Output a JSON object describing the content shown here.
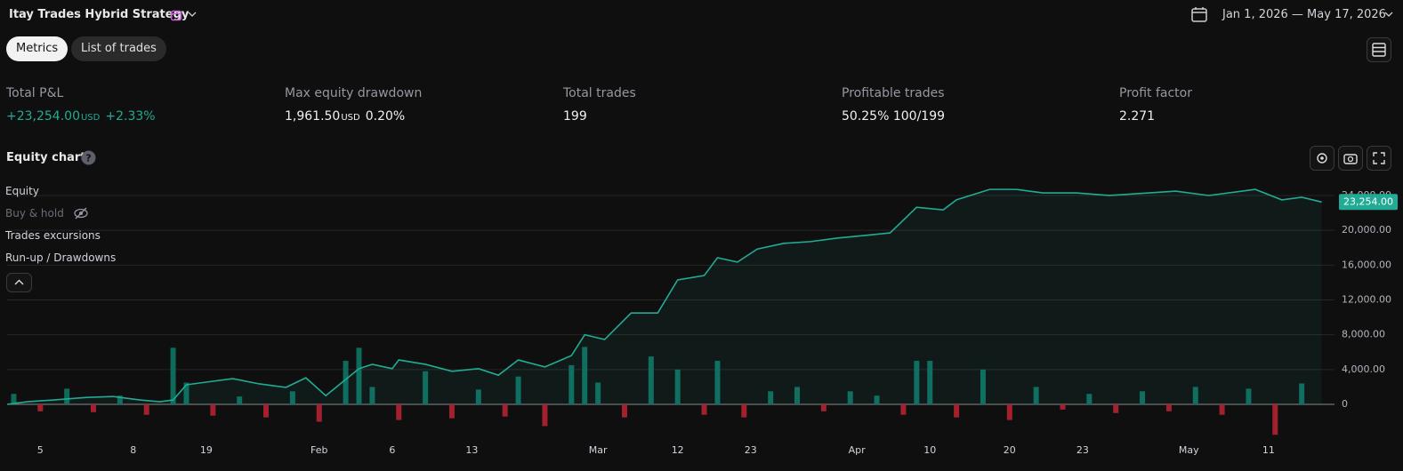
{
  "header": {
    "title": "Itay Trades Hybrid Strategy",
    "date_range": "Jan 1, 2026 — May 17, 2026"
  },
  "tabs": [
    "Metrics",
    "List of trades"
  ],
  "metrics": [
    {
      "label": "Total P&L",
      "value": "+23,254.00",
      "unit": "USD",
      "extra": "+2.33%"
    },
    {
      "label": "Max equity drawdown",
      "value": "1,961.50",
      "unit": "USD",
      "extra": "0.20%"
    },
    {
      "label": "Total trades",
      "value": "199"
    },
    {
      "label": "Profitable trades",
      "value": "50.25%",
      "extra": "100/199"
    },
    {
      "label": "Profit factor",
      "value": "2.271"
    }
  ],
  "section_title": "Equity chart",
  "legend_extra": [
    "Buy & hold",
    "Run-up / Drawdowns"
  ],
  "chart_data": {
    "type": "line",
    "series": [
      {
        "name": "Equity",
        "color": "#22ab94",
        "x": [
          0,
          3,
          7,
          12,
          16,
          20,
          23,
          25,
          27,
          30,
          34,
          38,
          42,
          45,
          48,
          53,
          55,
          58,
          59,
          63,
          67,
          71,
          74,
          77,
          81,
          85,
          87,
          90,
          94,
          98,
          101,
          105,
          107,
          110,
          113,
          117,
          121,
          125,
          129,
          133,
          137,
          141,
          143,
          148,
          152,
          156,
          161,
          166,
          172,
          176,
          181,
          188,
          192,
          195,
          198
        ],
        "values": [
          0,
          300,
          500,
          800,
          900,
          500,
          300,
          500,
          2250,
          2550,
          2950,
          2350,
          1950,
          3050,
          1000,
          4100,
          4600,
          4100,
          5100,
          4600,
          3800,
          4100,
          3350,
          5100,
          4300,
          5600,
          8000,
          7450,
          10500,
          10500,
          14300,
          14800,
          16850,
          16350,
          17850,
          18500,
          18700,
          19100,
          19400,
          19700,
          22650,
          22350,
          23500,
          24700,
          24700,
          24300,
          24300,
          24000,
          24300,
          24500,
          24000,
          24700,
          23500,
          23800,
          23254
        ]
      },
      {
        "name": "Trades excursions",
        "type": "bar",
        "color": "#0e6b5c",
        "negative_color": "#a3212e",
        "x": [
          1,
          5,
          9,
          13,
          17,
          21,
          25,
          27,
          31,
          35,
          39,
          43,
          47,
          51,
          53,
          55,
          59,
          63,
          67,
          71,
          75,
          77,
          81,
          85,
          87,
          89,
          93,
          97,
          101,
          105,
          107,
          111,
          115,
          119,
          123,
          127,
          131,
          135,
          137,
          139,
          143,
          147,
          151,
          155,
          159,
          163,
          167,
          171,
          175,
          179,
          183,
          187,
          191,
          195
        ],
        "values": [
          1200,
          -800,
          1800,
          -900,
          1000,
          -1200,
          6500,
          2500,
          -1300,
          900,
          -1500,
          1500,
          -2000,
          5000,
          6500,
          2000,
          -1800,
          3800,
          -1600,
          1700,
          -1400,
          3200,
          -2500,
          4500,
          6600,
          2500,
          -1500,
          5500,
          4000,
          -1200,
          5000,
          -1500,
          1500,
          2000,
          -800,
          1500,
          1000,
          -1200,
          5000,
          5000,
          -1500,
          4000,
          -1800,
          2000,
          -600,
          1200,
          -1000,
          1500,
          -800,
          2000,
          -1200,
          1800,
          -3500,
          2400
        ]
      }
    ],
    "xlim": [
      0,
      199
    ],
    "xticks": [
      {
        "value": 5,
        "label": "5"
      },
      {
        "value": 19,
        "label": "8"
      },
      {
        "value": 30,
        "label": "19"
      },
      {
        "value": 47,
        "label": "Feb"
      },
      {
        "value": 58,
        "label": "6"
      },
      {
        "value": 70,
        "label": "13"
      },
      {
        "value": 89,
        "label": "Mar"
      },
      {
        "value": 101,
        "label": "12"
      },
      {
        "value": 112,
        "label": "23"
      },
      {
        "value": 128,
        "label": "Apr"
      },
      {
        "value": 139,
        "label": "10"
      },
      {
        "value": 151,
        "label": "20"
      },
      {
        "value": 162,
        "label": "23"
      },
      {
        "value": 178,
        "label": "May"
      },
      {
        "value": 190,
        "label": "11"
      }
    ],
    "ylim": [
      -3780,
      25530
    ],
    "yticks": [
      0,
      {
        "value": 4000,
        "label": "4,000.00"
      },
      {
        "value": 8000,
        "label": "8,000.00"
      },
      {
        "value": 12000,
        "label": "12,000.00"
      },
      {
        "value": 16000,
        "label": "16,000.00"
      },
      {
        "value": 20000,
        "label": "20,000.00"
      },
      {
        "value": 24000,
        "label": "24,000.00"
      }
    ],
    "grid": true,
    "last_value_label": {
      "value": 23254,
      "label": "23,254.00"
    }
  }
}
